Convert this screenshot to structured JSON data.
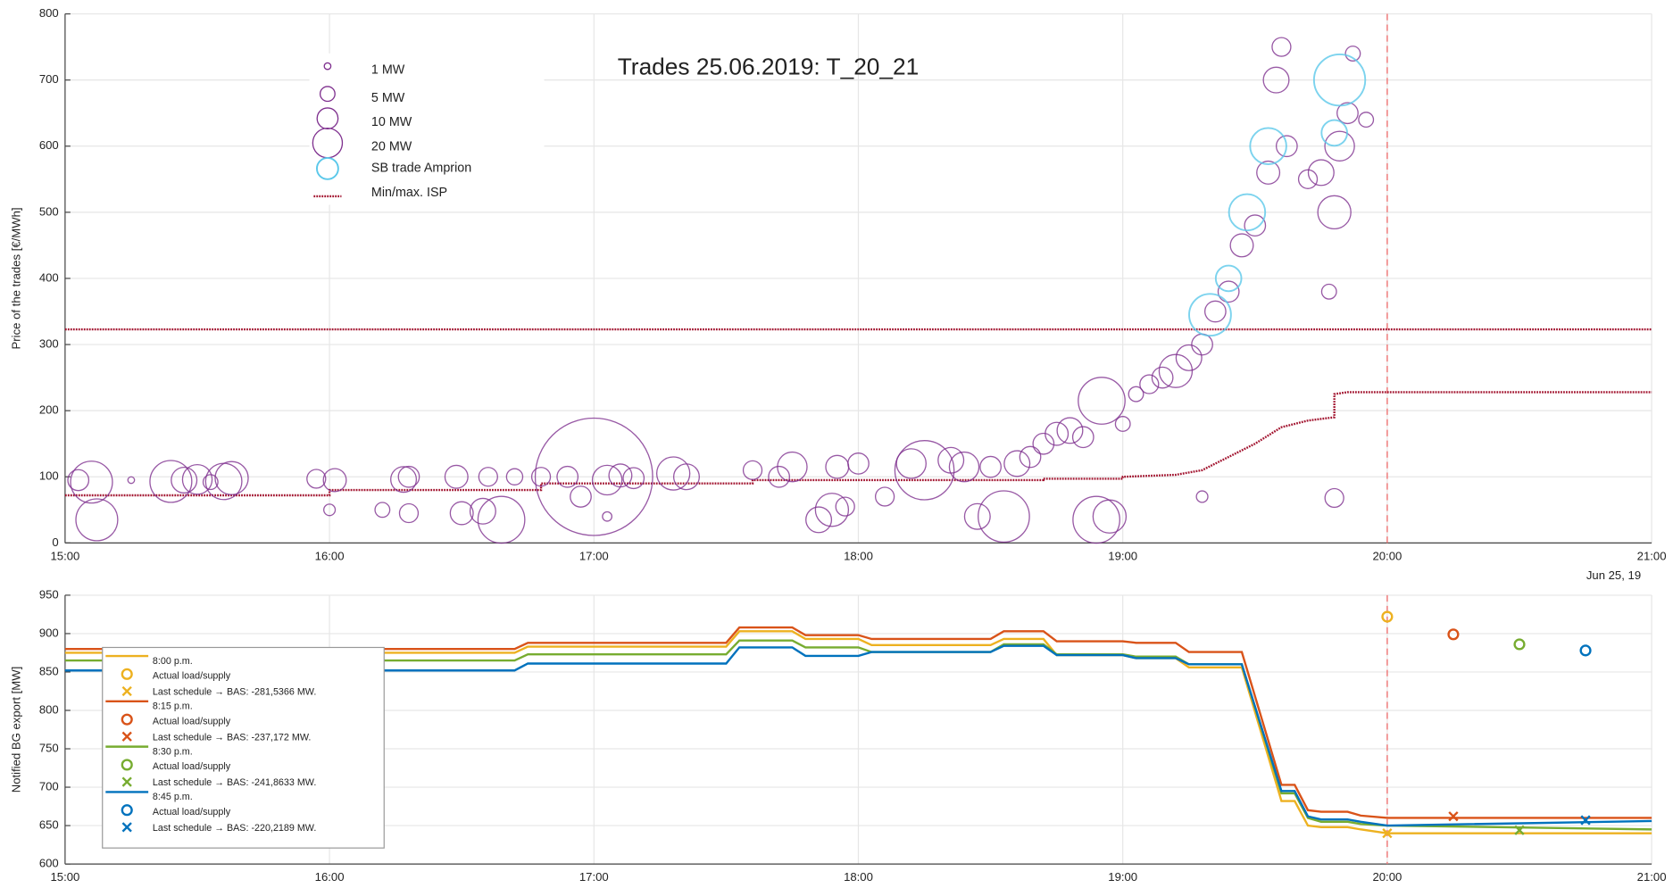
{
  "chart_data": [
    {
      "type": "scatter",
      "title": "Trades 25.06.2019: T_20_21",
      "y_label": "Price of the trades [€/MWh]",
      "date_note": "Jun 25, 19",
      "xlim": [
        15,
        21
      ],
      "xticks": [
        {
          "value": 15,
          "label": "15:00"
        },
        {
          "value": 16,
          "label": "16:00"
        },
        {
          "value": 17,
          "label": "17:00"
        },
        {
          "value": 18,
          "label": "18:00"
        },
        {
          "value": 19,
          "label": "19:00"
        },
        {
          "value": 20,
          "label": "20:00"
        },
        {
          "value": 21,
          "label": "21:00"
        }
      ],
      "ylim": [
        0,
        800
      ],
      "yticks": [
        0,
        100,
        200,
        300,
        400,
        500,
        600,
        700,
        800
      ],
      "grid": true,
      "vline": 20,
      "size_legend": [
        {
          "label": "1 MW",
          "value": 1
        },
        {
          "label": "5 MW",
          "value": 5
        },
        {
          "label": "10 MW",
          "value": 10
        },
        {
          "label": "20 MW",
          "value": 20
        }
      ],
      "series": [
        {
          "color": "#7e2f8e",
          "x": [
            15.05,
            15.1,
            15.12,
            15.25,
            15.4,
            15.45,
            15.5,
            15.6,
            15.63,
            15.55,
            15.95,
            16.02,
            16.0,
            16.2,
            16.28,
            16.3,
            16.3,
            16.48,
            16.5,
            16.58,
            16.6,
            16.65,
            16.7,
            16.8,
            16.9,
            16.95,
            17.0,
            17.05,
            17.05,
            17.1,
            17.15,
            17.3,
            17.35,
            17.6,
            17.7,
            17.75,
            17.85,
            17.9,
            17.92,
            17.95,
            18.0,
            18.1,
            18.2,
            18.25,
            18.35,
            18.4,
            18.45,
            18.5,
            18.55,
            18.6,
            18.65,
            18.7,
            18.75,
            18.8,
            18.85,
            18.9,
            18.92,
            18.95,
            19.0,
            19.05,
            19.1,
            19.15,
            19.2,
            19.25,
            19.3,
            19.35,
            19.4,
            19.45,
            19.5,
            19.55,
            19.58,
            19.6,
            19.62,
            19.7,
            19.75,
            19.8,
            19.78,
            19.82,
            19.85,
            19.87,
            19.8,
            19.92,
            19.3
          ],
          "values": [
            95,
            92,
            35,
            95,
            93,
            95,
            96,
            93,
            98,
            92,
            97,
            95,
            50,
            50,
            96,
            100,
            45,
            100,
            45,
            48,
            100,
            35,
            100,
            100,
            100,
            70,
            100,
            40,
            95,
            102,
            98,
            105,
            100,
            110,
            100,
            115,
            35,
            50,
            115,
            55,
            120,
            70,
            120,
            110,
            125,
            115,
            40,
            115,
            40,
            120,
            130,
            150,
            165,
            170,
            160,
            35,
            215,
            40,
            180,
            225,
            240,
            250,
            260,
            280,
            300,
            350,
            380,
            450,
            480,
            560,
            700,
            750,
            600,
            550,
            560,
            500,
            380,
            600,
            650,
            740,
            68,
            640,
            70
          ],
          "sizes": [
            10,
            40,
            40,
            1,
            40,
            15,
            20,
            30,
            25,
            5,
            8,
            12,
            3,
            5,
            15,
            10,
            8,
            12,
            12,
            15,
            8,
            50,
            6,
            8,
            10,
            10,
            315,
            2,
            20,
            12,
            10,
            25,
            15,
            8,
            10,
            20,
            15,
            25,
            12,
            8,
            10,
            8,
            20,
            80,
            15,
            20,
            15,
            10,
            60,
            15,
            10,
            10,
            12,
            15,
            10,
            50,
            50,
            25,
            5,
            5,
            8,
            10,
            25,
            15,
            10,
            10,
            10,
            12,
            10,
            12,
            15,
            8,
            10,
            8,
            15,
            25,
            5,
            20,
            10,
            5,
            8,
            5,
            3
          ]
        },
        {
          "name": "SB trade Amprion",
          "color": "#5bc8ea",
          "x": [
            19.33,
            19.4,
            19.47,
            19.55,
            19.82,
            19.8
          ],
          "values": [
            345,
            400,
            500,
            600,
            700,
            620
          ],
          "sizes": [
            40,
            15,
            30,
            30,
            60,
            15
          ]
        }
      ],
      "isp": {
        "name": "Min/max. ISP",
        "color": "#a2142f",
        "max": 323,
        "min_x": [
          15.0,
          16.0,
          16.0,
          16.8,
          16.8,
          17.6,
          17.6,
          18.7,
          18.7,
          19.0,
          19.0,
          19.2,
          19.3,
          19.4,
          19.5,
          19.6,
          19.7,
          19.8,
          19.8,
          19.85,
          19.9,
          21.0
        ],
        "min_values": [
          72,
          72,
          80,
          80,
          90,
          90,
          95,
          95,
          97,
          97,
          100,
          103,
          110,
          130,
          150,
          175,
          185,
          190,
          225,
          228,
          228,
          228
        ]
      }
    },
    {
      "type": "line",
      "y_label": "Notified BG export [MW]",
      "xlim": [
        15,
        21
      ],
      "xticks": [
        {
          "value": 15,
          "label": "15:00"
        },
        {
          "value": 16,
          "label": "16:00"
        },
        {
          "value": 17,
          "label": "17:00"
        },
        {
          "value": 18,
          "label": "18:00"
        },
        {
          "value": 19,
          "label": "19:00"
        },
        {
          "value": 20,
          "label": "20:00"
        },
        {
          "value": 21,
          "label": "21:00"
        }
      ],
      "ylim": [
        600,
        950
      ],
      "yticks": [
        600,
        650,
        700,
        750,
        800,
        850,
        900,
        950
      ],
      "grid": true,
      "vline": 20,
      "x": [
        15.0,
        16.7,
        16.75,
        17.5,
        17.55,
        17.75,
        17.8,
        18.0,
        18.05,
        18.5,
        18.55,
        18.7,
        18.75,
        19.0,
        19.05,
        19.2,
        19.25,
        19.45,
        19.6,
        19.65,
        19.7,
        19.75,
        19.85,
        19.9,
        20.0,
        21.0
      ],
      "series": [
        {
          "name": "8:00 p.m.",
          "color": "#edb120",
          "values": [
            875,
            875,
            883,
            883,
            903,
            903,
            893,
            893,
            885,
            885,
            893,
            893,
            872,
            872,
            868,
            868,
            856,
            856,
            682,
            682,
            650,
            648,
            648,
            645,
            640,
            640
          ],
          "actual": {
            "label": "Actual load/supply",
            "x": 20.0,
            "value": 922
          },
          "schedule": {
            "label": "Last schedule → BAS: -281,5366 MW.",
            "x": 20.0,
            "value": 640
          }
        },
        {
          "name": "8:15 p.m.",
          "color": "#d95319",
          "values": [
            880,
            880,
            888,
            888,
            908,
            908,
            898,
            898,
            893,
            893,
            903,
            903,
            890,
            890,
            888,
            888,
            876,
            876,
            703,
            703,
            670,
            668,
            668,
            663,
            660,
            660
          ],
          "actual": {
            "label": "Actual load/supply",
            "x": 20.25,
            "value": 899
          },
          "schedule": {
            "label": "Last schedule → BAS: -237,172 MW.",
            "x": 20.25,
            "value": 662
          }
        },
        {
          "name": "8:30 p.m.",
          "color": "#77ac30",
          "values": [
            865,
            865,
            873,
            873,
            891,
            891,
            882,
            882,
            876,
            876,
            886,
            886,
            873,
            873,
            870,
            870,
            860,
            860,
            692,
            692,
            660,
            655,
            655,
            652,
            650,
            645
          ],
          "actual": {
            "label": "Actual load/supply",
            "x": 20.5,
            "value": 886
          },
          "schedule": {
            "label": "Last schedule → BAS: -241,8633 MW.",
            "x": 20.5,
            "value": 644
          }
        },
        {
          "name": "8:45 p.m.",
          "color": "#0072bd",
          "values": [
            852,
            852,
            861,
            861,
            882,
            882,
            871,
            871,
            876,
            876,
            884,
            884,
            872,
            872,
            868,
            868,
            860,
            860,
            695,
            695,
            662,
            658,
            658,
            655,
            650,
            656
          ],
          "actual": {
            "label": "Actual load/supply",
            "x": 20.75,
            "value": 878
          },
          "schedule": {
            "label": "Last schedule → BAS: -220,2189 MW.",
            "x": 20.75,
            "value": 657
          }
        }
      ]
    }
  ]
}
